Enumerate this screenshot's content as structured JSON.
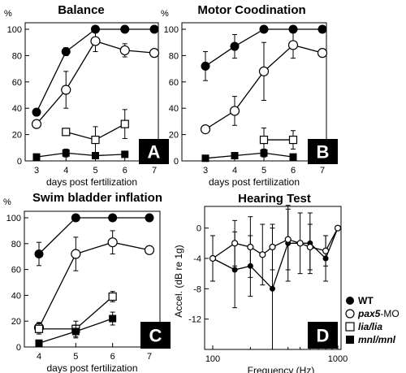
{
  "chart_data": [
    {
      "type": "line",
      "panel": "A",
      "title": "Balance",
      "ylabel": "%",
      "xlabel": "days post fertilization",
      "ylim": [
        0,
        100
      ],
      "xlim": [
        3,
        7
      ],
      "xticks": [
        3,
        4,
        5,
        6,
        7
      ],
      "yticks": [
        0,
        20,
        40,
        60,
        80,
        100
      ],
      "series": [
        {
          "name": "WT",
          "marker": "filled-circle",
          "x": [
            3,
            4,
            5,
            6,
            7
          ],
          "y": [
            37,
            83,
            100,
            100,
            100
          ],
          "err": [
            0,
            3,
            0,
            0,
            0
          ]
        },
        {
          "name": "pax5-MO",
          "marker": "open-circle",
          "x": [
            3,
            4,
            5,
            6,
            7
          ],
          "y": [
            28,
            54,
            91,
            84,
            82
          ],
          "err": [
            0,
            14,
            8,
            5,
            0
          ]
        },
        {
          "name": "lia/lia",
          "marker": "open-square",
          "x": [
            4,
            5,
            6
          ],
          "y": [
            22,
            16,
            28
          ],
          "err": [
            0,
            10,
            11
          ]
        },
        {
          "name": "mnl/mnl",
          "marker": "filled-square",
          "x": [
            3,
            4,
            5,
            6
          ],
          "y": [
            3,
            6,
            4,
            5
          ],
          "err": [
            0,
            3,
            2,
            0
          ]
        }
      ]
    },
    {
      "type": "line",
      "panel": "B",
      "title": "Motor Coodination",
      "ylabel": "%",
      "xlabel": "days post fertilization",
      "ylim": [
        0,
        100
      ],
      "xlim": [
        3,
        7
      ],
      "xticks": [
        3,
        4,
        5,
        6,
        7
      ],
      "yticks": [
        0,
        20,
        40,
        60,
        80,
        100
      ],
      "series": [
        {
          "name": "WT",
          "marker": "filled-circle",
          "x": [
            3,
            4,
            5,
            6,
            7
          ],
          "y": [
            72,
            87,
            100,
            100,
            100
          ],
          "err": [
            11,
            9,
            0,
            0,
            0
          ]
        },
        {
          "name": "pax5-MO",
          "marker": "open-circle",
          "x": [
            3,
            4,
            5,
            6,
            7
          ],
          "y": [
            24,
            38,
            68,
            88,
            82
          ],
          "err": [
            0,
            11,
            22,
            10,
            0
          ]
        },
        {
          "name": "lia/lia",
          "marker": "open-square",
          "x": [
            5,
            6
          ],
          "y": [
            16,
            16
          ],
          "err": [
            9,
            7
          ]
        },
        {
          "name": "mnl/mnl",
          "marker": "filled-square",
          "x": [
            3,
            4,
            5,
            6
          ],
          "y": [
            2,
            4,
            6,
            3
          ],
          "err": [
            0,
            2,
            3,
            2
          ]
        }
      ]
    },
    {
      "type": "line",
      "panel": "C",
      "title": "Swim bladder inflation",
      "ylabel": "%",
      "xlabel": "days post fertilization",
      "ylim": [
        0,
        100
      ],
      "xlim": [
        4,
        7
      ],
      "xticks": [
        4,
        5,
        6,
        7
      ],
      "yticks": [
        0,
        20,
        40,
        60,
        80,
        100
      ],
      "series": [
        {
          "name": "WT",
          "marker": "filled-circle",
          "x": [
            4,
            5,
            6,
            7
          ],
          "y": [
            72,
            100,
            100,
            100
          ],
          "err": [
            9,
            0,
            0,
            0
          ]
        },
        {
          "name": "pax5-MO",
          "marker": "open-circle",
          "x": [
            4,
            5,
            6,
            7
          ],
          "y": [
            15,
            72,
            81,
            75
          ],
          "err": [
            4,
            13,
            9,
            0
          ]
        },
        {
          "name": "lia/lia",
          "marker": "open-square",
          "x": [
            4,
            5,
            6
          ],
          "y": [
            14,
            14,
            39
          ],
          "err": [
            4,
            6,
            4
          ]
        },
        {
          "name": "mnl/mnl",
          "marker": "filled-square",
          "x": [
            4,
            5,
            6
          ],
          "y": [
            3,
            12,
            22
          ],
          "err": [
            0,
            5,
            5
          ]
        }
      ]
    },
    {
      "type": "line",
      "panel": "D",
      "title": "Hearing Test",
      "ylabel": "Accel. (dB re 1g)",
      "xlabel": "Frequency (Hz)",
      "xscale": "log",
      "xlim": [
        100,
        1000
      ],
      "ylim": [
        -16,
        2
      ],
      "xticks": [
        100,
        1000
      ],
      "yticks": [
        0,
        -4,
        -8,
        -12
      ],
      "series": [
        {
          "name": "WT",
          "marker": "filled-circle",
          "x": [
            100,
            150,
            200,
            300,
            400,
            600,
            800,
            1000
          ],
          "y": [
            -4,
            -5.5,
            -5,
            -8,
            -2,
            -2,
            -4,
            0
          ],
          "err": [
            3,
            5,
            4,
            8,
            5,
            4,
            3,
            0
          ]
        },
        {
          "name": "pax5-MO",
          "marker": "open-circle",
          "x": [
            100,
            150,
            200,
            250,
            300,
            400,
            500,
            600,
            800,
            1000
          ],
          "y": [
            -4,
            -2,
            -2.5,
            -3.5,
            -2.5,
            -1.5,
            -2,
            -2.5,
            -3,
            0
          ],
          "err": [
            3,
            3,
            4,
            4,
            3,
            4,
            4,
            3,
            2,
            0
          ]
        }
      ]
    }
  ],
  "legend": [
    {
      "label": "WT",
      "marker": "filled-circle"
    },
    {
      "label": "pax5",
      "suffix": "-MO",
      "marker": "open-circle"
    },
    {
      "label": "lia/lia",
      "marker": "open-square"
    },
    {
      "label": "mnl/mnl",
      "marker": "filled-square"
    }
  ]
}
